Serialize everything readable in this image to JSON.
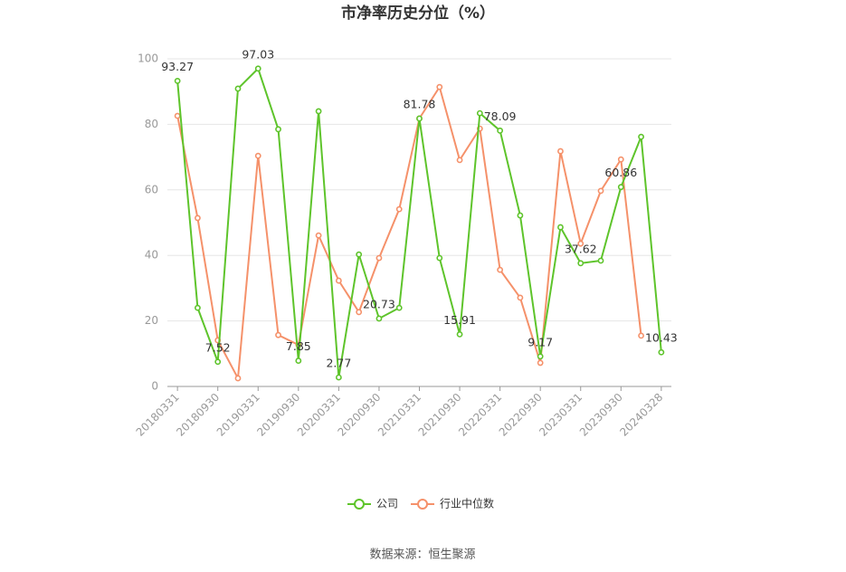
{
  "chart_data": {
    "type": "line",
    "title": "市净率历史分位（%）",
    "source": "数据来源：恒生聚源",
    "categories": [
      "20180331",
      null,
      "20180930",
      null,
      "20190331",
      null,
      "20190930",
      null,
      "20200331",
      null,
      "20200930",
      null,
      "20210331",
      null,
      "20210930",
      null,
      "20220331",
      null,
      "20220930",
      null,
      "20230331",
      null,
      "20230930",
      null,
      "20240328"
    ],
    "series": [
      {
        "name": "公司",
        "color": "#5ec42b",
        "values": [
          93.27,
          24.0,
          7.52,
          90.9,
          97.03,
          78.5,
          7.85,
          84.0,
          2.77,
          40.3,
          20.73,
          24.0,
          81.78,
          39.2,
          15.91,
          83.4,
          78.09,
          52.2,
          9.17,
          48.6,
          37.62,
          38.4,
          60.86,
          76.2,
          10.43
        ],
        "value_labels": [
          "93.27",
          null,
          "7.52",
          null,
          "97.03",
          null,
          "7.85",
          null,
          "2.77",
          null,
          "20.73",
          null,
          "81.78",
          null,
          "15.91",
          null,
          "78.09",
          null,
          "9.17",
          null,
          "37.62",
          null,
          "60.86",
          null,
          "10.43"
        ]
      },
      {
        "name": "行业中位数",
        "color": "#f5916a",
        "values": [
          82.6,
          51.4,
          14.1,
          2.5,
          70.4,
          15.7,
          12.7,
          46.1,
          32.3,
          22.7,
          39.2,
          54.1,
          81.8,
          91.4,
          69.1,
          78.7,
          35.6,
          27.1,
          7.2,
          71.8,
          43.6,
          59.7,
          69.3,
          15.5,
          null
        ]
      }
    ],
    "ylim": [
      0,
      100
    ],
    "yticks": [
      0,
      20,
      40,
      60,
      80,
      100
    ],
    "grid": true
  }
}
